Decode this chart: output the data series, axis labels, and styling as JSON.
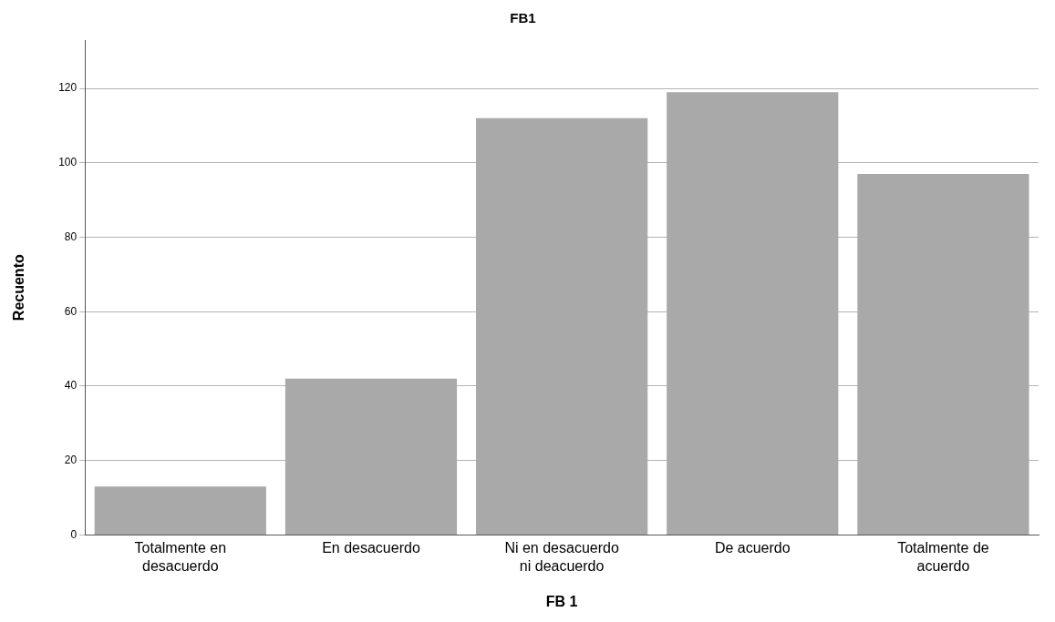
{
  "chart_data": {
    "type": "bar",
    "title": "FB1",
    "xlabel": "FB 1",
    "ylabel": "Recuento",
    "categories": [
      "Totalmente en desacuerdo",
      "En desacuerdo",
      "Ni en desacuerdo ni deacuerdo",
      "De acuerdo",
      "Totalmente de acuerdo"
    ],
    "values": [
      13,
      42,
      112,
      119,
      97
    ],
    "color": "#a9a9a9",
    "ylim": [
      0,
      133
    ],
    "yticks": [
      0,
      20,
      40,
      60,
      80,
      100,
      120
    ],
    "grid": "y",
    "legend": false
  }
}
